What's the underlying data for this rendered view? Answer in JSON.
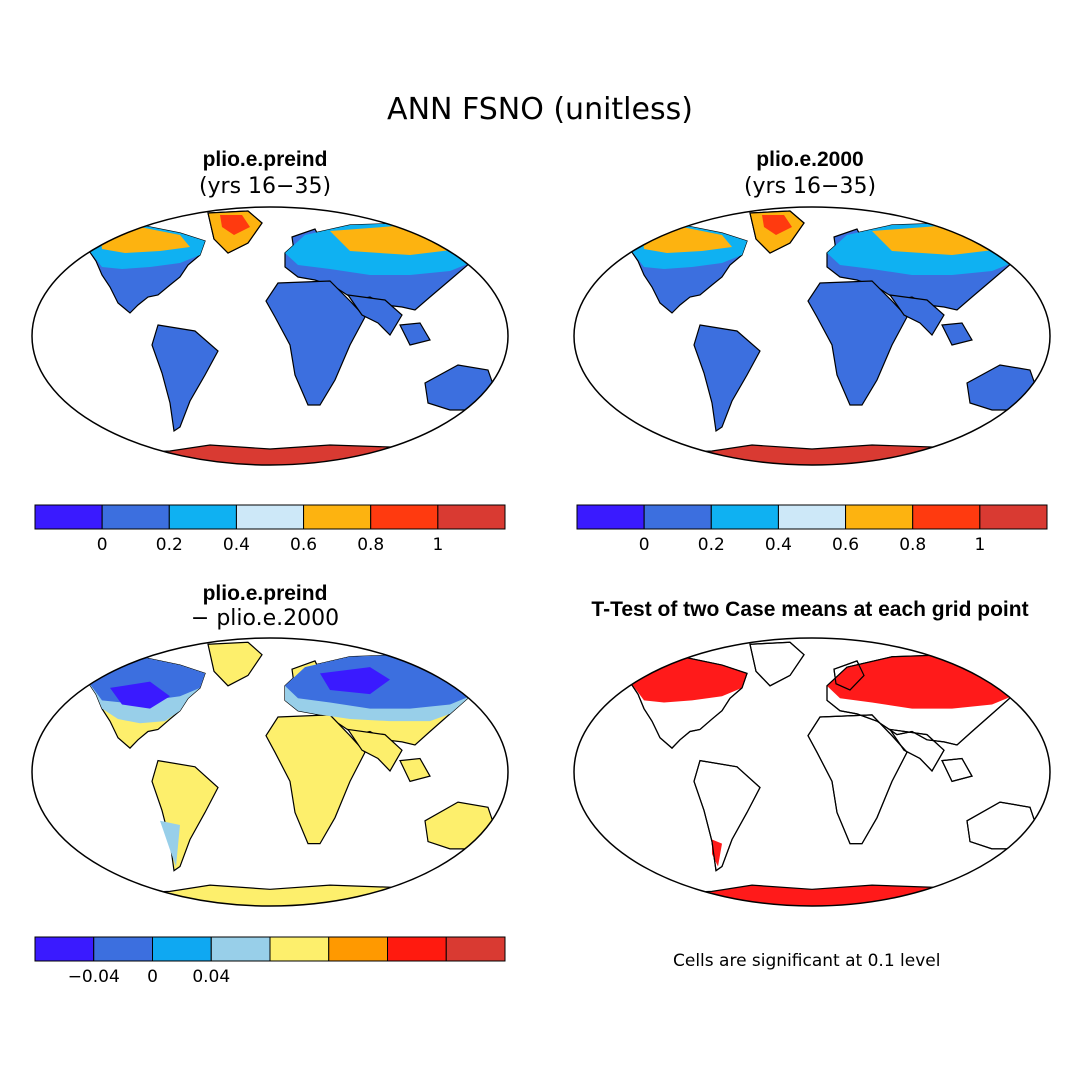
{
  "title": "ANN FSNO (unitless)",
  "panels": [
    {
      "title": "plio.e.preind",
      "subtitle": "(yrs 16−35)",
      "scale": "abs",
      "antarctica": "#d93a32"
    },
    {
      "title": "plio.e.2000",
      "subtitle": "(yrs 16−35)",
      "scale": "abs",
      "antarctica": "#d93a32"
    },
    {
      "title": "plio.e.preind",
      "subtitle": "− plio.e.2000",
      "scale": "diff",
      "antarctica": "#fdef6c"
    },
    {
      "title": "T-Test of two Case means at each grid point",
      "subtitle": "",
      "scale": "ttest",
      "antarctica": "#ff1a1a"
    }
  ],
  "colorbars": {
    "abs": {
      "colors": [
        "#3a1aff",
        "#3c6fdf",
        "#0fb1f2",
        "#cde8f8",
        "#fdb310",
        "#ff3a0f",
        "#d93a32"
      ],
      "tick_labels": [
        "0",
        "0.2",
        "0.4",
        "0.6",
        "0.8",
        "1"
      ]
    },
    "diff": {
      "colors": [
        "#3a1aff",
        "#3c6fdf",
        "#0fa8f2",
        "#98cfe9",
        "#fdef6c",
        "#ff9900",
        "#ff1a0f",
        "#d93a32"
      ],
      "tick_labels": [
        "−0.04",
        "0",
        "0.04"
      ]
    }
  },
  "significance_note": "Cells are significant at 0.1 level",
  "colors": {
    "land_blue": "#3c6fdf",
    "land_yellow": "#fdef6c",
    "sig_red": "#ff1a1a"
  }
}
